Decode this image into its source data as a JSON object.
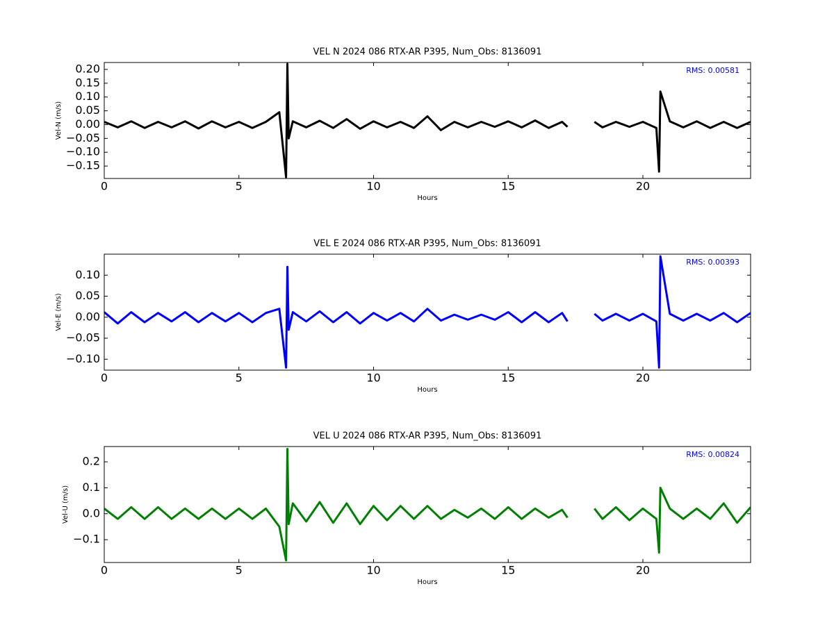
{
  "chart_data": [
    {
      "type": "line",
      "title": "VEL N 2024 086 RTX-AR  P395, Num_Obs: 8136091",
      "xlabel": "Hours",
      "ylabel": "Vel-N (m/s)",
      "annotation": "RMS:  0.00581",
      "color": "#000000",
      "xlim": [
        0,
        24
      ],
      "xticks": [
        0,
        5,
        10,
        15,
        20
      ],
      "ylim": [
        -0.195,
        0.225
      ],
      "yticks": [
        {
          "value": 0.2,
          "label": "0.20"
        },
        {
          "value": 0.15,
          "label": "0.15"
        },
        {
          "value": 0.1,
          "label": "0.10"
        },
        {
          "value": 0.05,
          "label": "0.05"
        },
        {
          "value": 0,
          "label": "0.00"
        },
        {
          "value": -0.05,
          "label": "−0.05"
        },
        {
          "value": -0.1,
          "label": "−0.10"
        },
        {
          "value": -0.15,
          "label": "−0.15"
        }
      ],
      "x": [
        0,
        0.5,
        1,
        1.5,
        2,
        2.5,
        3,
        3.5,
        4,
        4.5,
        5,
        5.5,
        6,
        6.5,
        6.75,
        6.8,
        6.85,
        7,
        7.5,
        8,
        8.5,
        9,
        9.5,
        10,
        10.5,
        11,
        11.5,
        12,
        12.5,
        13,
        13.5,
        14,
        14.5,
        15,
        15.5,
        16,
        16.5,
        17,
        17.2,
        17.7,
        18.2,
        18.5,
        19,
        19.5,
        20,
        20.5,
        20.6,
        20.65,
        21,
        21.5,
        22,
        22.5,
        23,
        23.5,
        24
      ],
      "values": [
        0.01,
        -0.01,
        0.012,
        -0.012,
        0.01,
        -0.01,
        0.012,
        -0.014,
        0.012,
        -0.01,
        0.01,
        -0.012,
        0.01,
        0.045,
        -0.19,
        0.22,
        -0.05,
        0.012,
        -0.01,
        0.014,
        -0.012,
        0.02,
        -0.015,
        0.012,
        -0.01,
        0.01,
        -0.012,
        0.03,
        -0.02,
        0.01,
        -0.01,
        0.01,
        -0.008,
        0.012,
        -0.01,
        0.015,
        -0.012,
        0.01,
        -0.008,
        null,
        0.01,
        -0.01,
        0.01,
        -0.008,
        0.01,
        -0.012,
        -0.17,
        0.12,
        0.012,
        -0.01,
        0.012,
        -0.012,
        0.01,
        -0.012,
        0.01
      ]
    },
    {
      "type": "line",
      "title": "VEL E 2024 086 RTX-AR  P395, Num_Obs: 8136091",
      "xlabel": "Hours",
      "ylabel": "Vel-E (m/s)",
      "annotation": "RMS:  0.00393",
      "color": "#0000ff",
      "xlim": [
        0,
        24
      ],
      "xticks": [
        0,
        5,
        10,
        15,
        20
      ],
      "ylim": [
        -0.126,
        0.15
      ],
      "yticks": [
        {
          "value": 0.1,
          "label": "0.10"
        },
        {
          "value": 0.05,
          "label": "0.05"
        },
        {
          "value": 0,
          "label": "0.00"
        },
        {
          "value": -0.05,
          "label": "−0.05"
        },
        {
          "value": -0.1,
          "label": "−0.10"
        }
      ],
      "x": [
        0,
        0.5,
        1,
        1.5,
        2,
        2.5,
        3,
        3.5,
        4,
        4.5,
        5,
        5.5,
        6,
        6.5,
        6.75,
        6.8,
        6.85,
        7,
        7.5,
        8,
        8.5,
        9,
        9.5,
        10,
        10.5,
        11,
        11.5,
        12,
        12.5,
        13,
        13.5,
        14,
        14.5,
        15,
        15.5,
        16,
        16.5,
        17,
        17.2,
        17.7,
        18.2,
        18.5,
        19,
        19.5,
        20,
        20.5,
        20.6,
        20.65,
        21,
        21.5,
        22,
        22.5,
        23,
        23.5,
        24
      ],
      "values": [
        0.012,
        -0.015,
        0.012,
        -0.012,
        0.01,
        -0.01,
        0.012,
        -0.012,
        0.01,
        -0.01,
        0.01,
        -0.012,
        0.01,
        0.02,
        -0.12,
        0.12,
        -0.03,
        0.012,
        -0.01,
        0.014,
        -0.012,
        0.012,
        -0.015,
        0.01,
        -0.008,
        0.01,
        -0.01,
        0.02,
        -0.008,
        0.006,
        -0.006,
        0.006,
        -0.006,
        0.012,
        -0.012,
        0.012,
        -0.012,
        0.01,
        -0.01,
        null,
        0.008,
        -0.008,
        0.008,
        -0.008,
        0.008,
        -0.01,
        -0.12,
        0.145,
        0.008,
        -0.008,
        0.008,
        -0.008,
        0.01,
        -0.012,
        0.01
      ]
    },
    {
      "type": "line",
      "title": "VEL U 2024 086 RTX-AR  P395, Num_Obs: 8136091",
      "xlabel": "Hours",
      "ylabel": "Vel-U (m/s)",
      "annotation": "RMS:  0.00824",
      "color": "#008000",
      "xlim": [
        0,
        24
      ],
      "xticks": [
        0,
        5,
        10,
        15,
        20
      ],
      "ylim": [
        -0.188,
        0.259
      ],
      "yticks": [
        0.2,
        0.1,
        {
          "value": 0,
          "label": "0.0"
        },
        {
          "value": -0.1,
          "label": "−0.1"
        }
      ],
      "x": [
        0,
        0.5,
        1,
        1.5,
        2,
        2.5,
        3,
        3.5,
        4,
        4.5,
        5,
        5.5,
        6,
        6.5,
        6.75,
        6.8,
        6.85,
        7,
        7.5,
        8,
        8.5,
        9,
        9.5,
        10,
        10.5,
        11,
        11.5,
        12,
        12.5,
        13,
        13.5,
        14,
        14.5,
        15,
        15.5,
        16,
        16.5,
        17,
        17.2,
        17.7,
        18.2,
        18.5,
        19,
        19.5,
        20,
        20.5,
        20.6,
        20.65,
        21,
        21.5,
        22,
        22.5,
        23,
        23.5,
        24
      ],
      "values": [
        0.02,
        -0.02,
        0.025,
        -0.02,
        0.025,
        -0.02,
        0.02,
        -0.02,
        0.02,
        -0.02,
        0.02,
        -0.02,
        0.02,
        -0.05,
        -0.18,
        0.25,
        -0.04,
        0.04,
        -0.03,
        0.045,
        -0.035,
        0.04,
        -0.04,
        0.03,
        -0.025,
        0.03,
        -0.02,
        0.03,
        -0.02,
        0.015,
        -0.015,
        0.02,
        -0.02,
        0.025,
        -0.02,
        0.02,
        -0.015,
        0.015,
        -0.015,
        null,
        0.02,
        -0.02,
        0.025,
        -0.025,
        0.02,
        -0.02,
        -0.15,
        0.1,
        0.02,
        -0.02,
        0.02,
        -0.02,
        0.04,
        -0.035,
        0.025
      ]
    }
  ]
}
